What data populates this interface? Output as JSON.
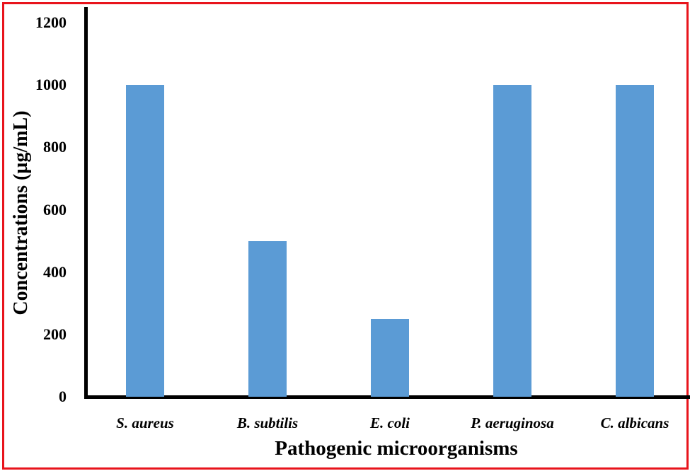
{
  "chart_data": {
    "type": "bar",
    "title": "",
    "xlabel": "Pathogenic microorganisms",
    "ylabel": "Concentrations (µg/mL)",
    "categories": [
      "S. aureus",
      "B. subtilis",
      "E. coli",
      "P. aeruginosa",
      "C. albicans"
    ],
    "values": [
      1000,
      500,
      250,
      1000,
      1000
    ],
    "ylim": [
      0,
      1200
    ],
    "yticks": [
      "0",
      "200",
      "400",
      "600",
      "800",
      "1000",
      "1200"
    ],
    "grid": false,
    "legend": null,
    "bar_color": "#5b9bd5",
    "frame_color": "#e8141c"
  }
}
